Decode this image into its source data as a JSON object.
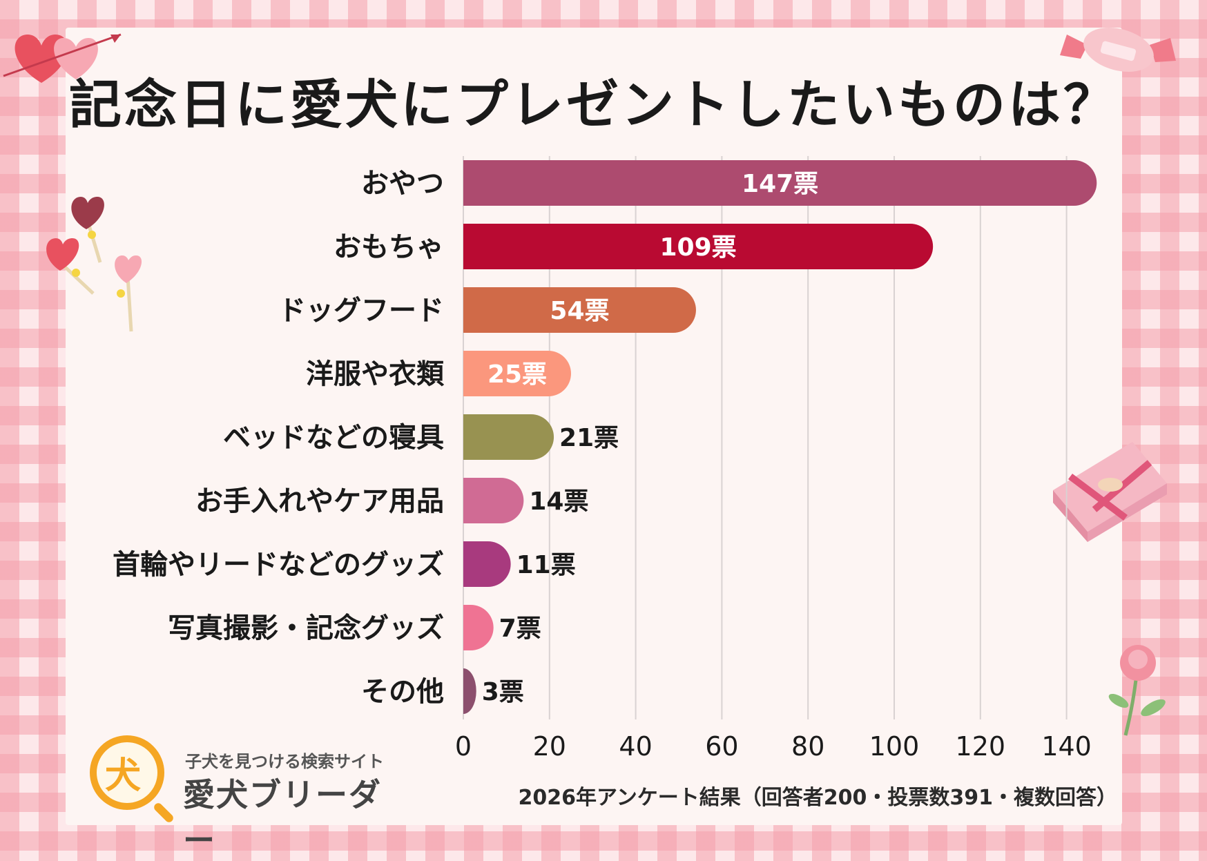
{
  "chart_data": {
    "type": "bar",
    "orientation": "horizontal",
    "title": "記念日に愛犬にプレゼントしたいものは？",
    "categories": [
      "おやつ",
      "おもちゃ",
      "ドッグフード",
      "洋服や衣類",
      "ベッドなどの寝具",
      "お手入れやケア用品",
      "首輪やリードなどのグッズ",
      "写真撮影・記念グッズ",
      "その他"
    ],
    "values": [
      147,
      109,
      54,
      25,
      21,
      14,
      11,
      7,
      3
    ],
    "value_labels": [
      "147票",
      "109票",
      "54票",
      "25票",
      "21票",
      "14票",
      "11票",
      "7票",
      "3票"
    ],
    "colors": [
      "#ad4b6f",
      "#b90a32",
      "#d06a48",
      "#fb977d",
      "#989251",
      "#d06b94",
      "#a83a7e",
      "#ef7393",
      "#8c4f6d"
    ],
    "xlim": [
      0,
      150
    ],
    "xticks": [
      "0",
      "20",
      "40",
      "60",
      "80",
      "100",
      "120",
      "140"
    ],
    "grid": true,
    "xlabel": "",
    "ylabel": ""
  },
  "footer_note": "2026年アンケート結果（回答者200・投票数391・複数回答）",
  "logo": {
    "tagline": "子犬を見つける検索サイト",
    "name": "愛犬ブリーダー"
  }
}
